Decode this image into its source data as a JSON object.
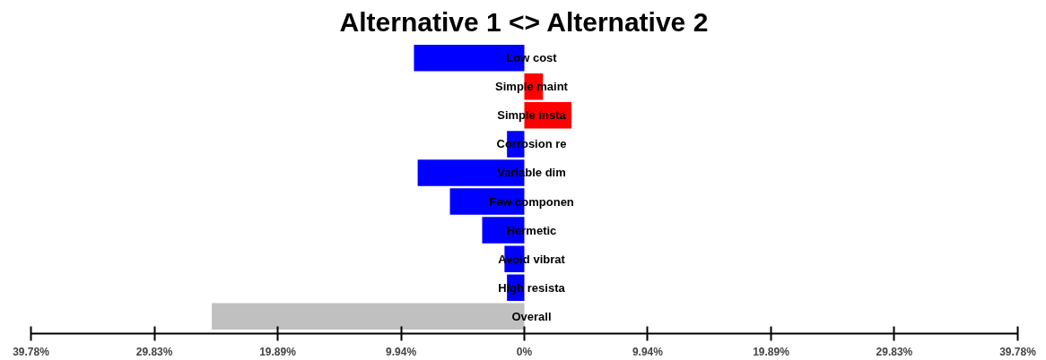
{
  "chart_data": {
    "type": "bar",
    "orientation": "horizontal",
    "title": "Alternative 1 <> Alternative 2",
    "categories": [
      "Low cost",
      "Simple maint",
      "Simple insta",
      "Corrosion re",
      "Variable dim",
      "Few componen",
      "Hermetic",
      "Avoid vibrat",
      "High resista",
      "Overall"
    ],
    "values": [
      -8.9,
      1.5,
      3.8,
      -1.4,
      -8.6,
      -6.0,
      -3.4,
      -1.6,
      -1.4,
      -25.2
    ],
    "colors": [
      "#0000ff",
      "#ff0000",
      "#ff0000",
      "#0000ff",
      "#0000ff",
      "#0000ff",
      "#0000ff",
      "#0000ff",
      "#0000ff",
      "#c0c0c0"
    ],
    "xlim": [
      -39.78,
      39.78
    ],
    "xticks": [
      {
        "value": -39.78,
        "label": "39.78%"
      },
      {
        "value": -29.83,
        "label": "29.83%"
      },
      {
        "value": -19.89,
        "label": "19.89%"
      },
      {
        "value": -9.94,
        "label": "9.94%"
      },
      {
        "value": 0,
        "label": "0%"
      },
      {
        "value": 9.94,
        "label": "9.94%"
      },
      {
        "value": 19.89,
        "label": "19.89%"
      },
      {
        "value": 29.83,
        "label": "29.83%"
      },
      {
        "value": 39.78,
        "label": "39.78%"
      }
    ],
    "grid": false
  }
}
